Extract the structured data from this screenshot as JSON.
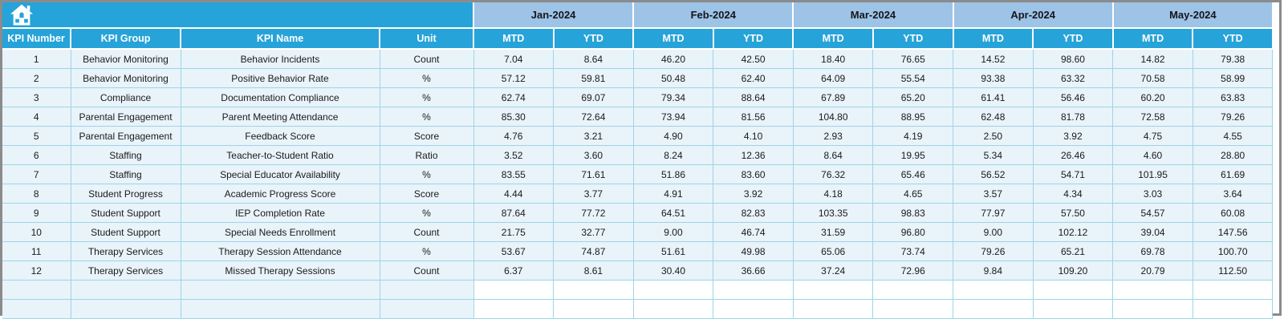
{
  "header": {
    "home_icon": "home-icon",
    "left_columns": [
      "KPI Number",
      "KPI Group",
      "KPI Name",
      "Unit"
    ],
    "months": [
      "Jan-2024",
      "Feb-2024",
      "Mar-2024",
      "Apr-2024",
      "May-2024"
    ],
    "period_labels": [
      "MTD",
      "YTD"
    ]
  },
  "rows": [
    {
      "num": "1",
      "group": "Behavior Monitoring",
      "name": "Behavior Incidents",
      "unit": "Count",
      "values": [
        "7.04",
        "8.64",
        "46.20",
        "42.50",
        "18.40",
        "76.65",
        "14.52",
        "98.60",
        "14.82",
        "79.38"
      ]
    },
    {
      "num": "2",
      "group": "Behavior Monitoring",
      "name": "Positive Behavior Rate",
      "unit": "%",
      "values": [
        "57.12",
        "59.81",
        "50.48",
        "62.40",
        "64.09",
        "55.54",
        "93.38",
        "63.32",
        "70.58",
        "58.99"
      ]
    },
    {
      "num": "3",
      "group": "Compliance",
      "name": "Documentation Compliance",
      "unit": "%",
      "values": [
        "62.74",
        "69.07",
        "79.34",
        "88.64",
        "67.89",
        "65.20",
        "61.41",
        "56.46",
        "60.20",
        "63.83"
      ]
    },
    {
      "num": "4",
      "group": "Parental Engagement",
      "name": "Parent Meeting Attendance",
      "unit": "%",
      "values": [
        "85.30",
        "72.64",
        "73.94",
        "81.56",
        "104.80",
        "88.95",
        "62.48",
        "81.78",
        "72.58",
        "79.26"
      ]
    },
    {
      "num": "5",
      "group": "Parental Engagement",
      "name": "Feedback Score",
      "unit": "Score",
      "values": [
        "4.76",
        "3.21",
        "4.90",
        "4.10",
        "2.93",
        "4.19",
        "2.50",
        "3.92",
        "4.75",
        "4.55"
      ]
    },
    {
      "num": "6",
      "group": "Staffing",
      "name": "Teacher-to-Student Ratio",
      "unit": "Ratio",
      "values": [
        "3.52",
        "3.60",
        "8.24",
        "12.36",
        "8.64",
        "19.95",
        "5.34",
        "26.46",
        "4.60",
        "28.80"
      ]
    },
    {
      "num": "7",
      "group": "Staffing",
      "name": "Special Educator Availability",
      "unit": "%",
      "values": [
        "83.55",
        "71.61",
        "51.86",
        "83.60",
        "76.32",
        "65.46",
        "56.52",
        "54.71",
        "101.95",
        "61.69"
      ]
    },
    {
      "num": "8",
      "group": "Student Progress",
      "name": "Academic Progress Score",
      "unit": "Score",
      "values": [
        "4.44",
        "3.77",
        "4.91",
        "3.92",
        "4.18",
        "4.65",
        "3.57",
        "4.34",
        "3.03",
        "3.64"
      ]
    },
    {
      "num": "9",
      "group": "Student Support",
      "name": "IEP Completion Rate",
      "unit": "%",
      "values": [
        "87.64",
        "77.72",
        "64.51",
        "82.83",
        "103.35",
        "98.83",
        "77.97",
        "57.50",
        "54.57",
        "60.08"
      ]
    },
    {
      "num": "10",
      "group": "Student Support",
      "name": "Special Needs Enrollment",
      "unit": "Count",
      "values": [
        "21.75",
        "32.77",
        "9.00",
        "46.74",
        "31.59",
        "96.80",
        "9.00",
        "102.12",
        "39.04",
        "147.56"
      ]
    },
    {
      "num": "11",
      "group": "Therapy Services",
      "name": "Therapy Session Attendance",
      "unit": "%",
      "values": [
        "53.67",
        "74.87",
        "51.61",
        "49.98",
        "65.06",
        "73.74",
        "79.26",
        "65.21",
        "69.78",
        "100.70"
      ]
    },
    {
      "num": "12",
      "group": "Therapy Services",
      "name": "Missed Therapy Sessions",
      "unit": "Count",
      "values": [
        "6.37",
        "8.61",
        "30.40",
        "36.66",
        "37.24",
        "72.96",
        "9.84",
        "109.20",
        "20.79",
        "112.50"
      ]
    }
  ],
  "empty_row_count": 2,
  "colors": {
    "header_teal": "#26a3d9",
    "month_band_blue": "#9dc3e6",
    "row_bg": "#e9f3fa",
    "grid_border": "#9cd5e8",
    "frame_gray": "#8b8b8b",
    "header_text": "#ffffff",
    "band_text": "#15151d"
  }
}
